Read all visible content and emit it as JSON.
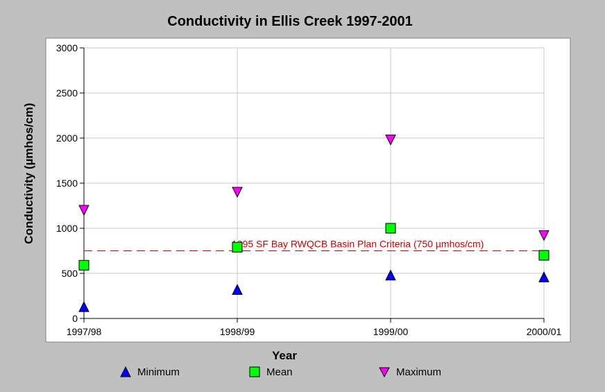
{
  "chart_data": {
    "type": "scatter",
    "title": "Conductivity in Ellis Creek 1997-2001",
    "xlabel": "Year",
    "ylabel": "Conductivity (µmhos/cm)",
    "categories": [
      "1997/98",
      "1998/99",
      "1999/00",
      "2000/01"
    ],
    "ylim": [
      0,
      3000
    ],
    "yticks": [
      "0",
      "500",
      "1000",
      "1500",
      "2000",
      "2500",
      "3000"
    ],
    "grid": true,
    "legend_position": "bottom",
    "series": [
      {
        "name": "Minimum",
        "values": [
          130,
          320,
          480,
          460
        ],
        "marker": "triangle-up",
        "color": "#0000ff"
      },
      {
        "name": "Mean",
        "values": [
          590,
          790,
          1000,
          700
        ],
        "marker": "square",
        "color": "#00ff00"
      },
      {
        "name": "Maximum",
        "values": [
          1200,
          1400,
          1980,
          920
        ],
        "marker": "triangle-down",
        "color": "#ff00ff"
      }
    ],
    "reference_line": {
      "value": 750,
      "label": "1995 SF Bay RWQCB Basin Plan Criteria (750 µmhos/cm)",
      "color": "#cc0000",
      "style": "dashed"
    }
  }
}
